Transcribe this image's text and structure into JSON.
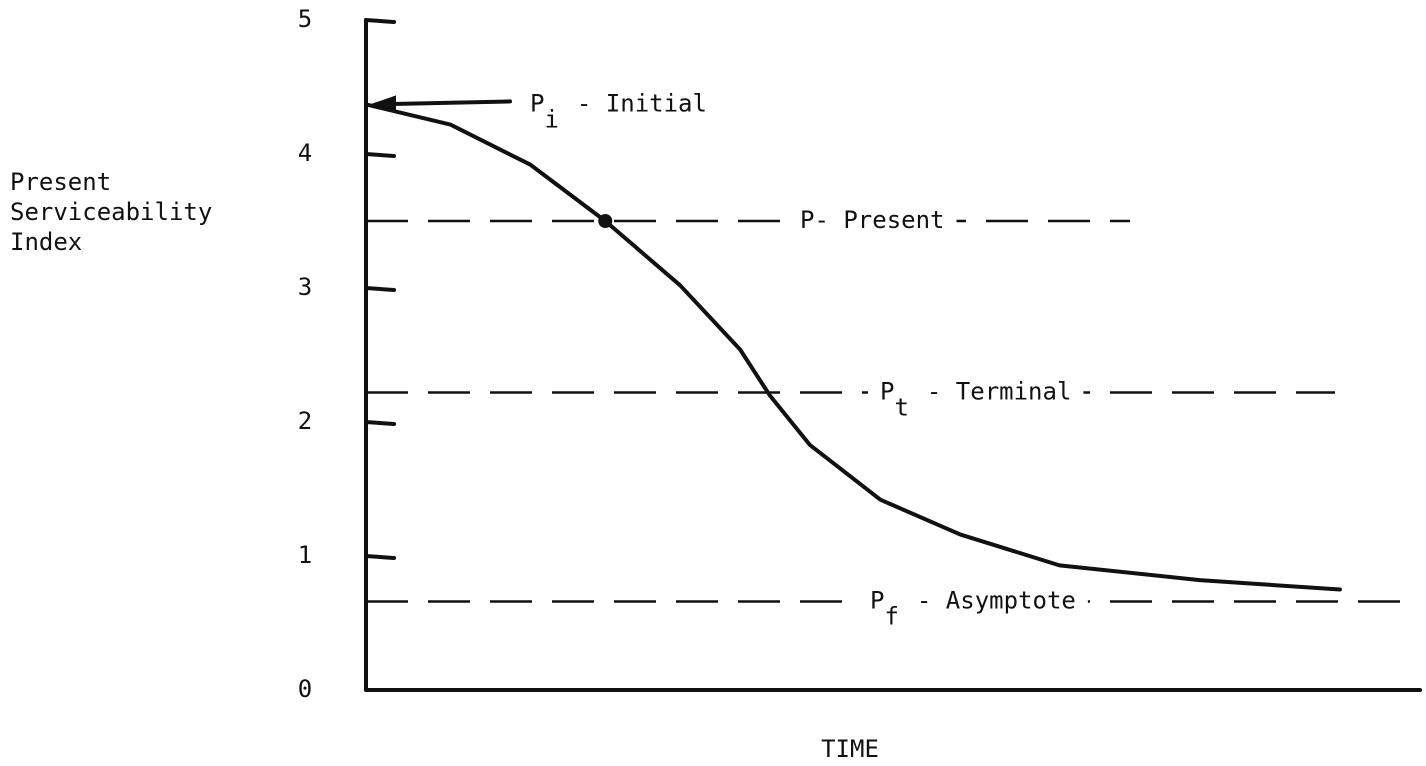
{
  "chart_data": {
    "type": "line",
    "xlabel": "TIME",
    "ylabel": "Present Serviceability Index",
    "xlim": [
      0,
      100
    ],
    "ylim": [
      0,
      5
    ],
    "yticks": [
      0,
      1,
      2,
      3,
      4,
      5
    ],
    "series": [
      {
        "color": "#111111",
        "x": [
          0,
          8,
          15.6,
          22.7,
          29.8,
          35.5,
          38.3,
          42.1,
          48.8,
          56.4,
          65.8,
          79.1,
          92.4
        ],
        "values": [
          4.37,
          4.22,
          3.92,
          3.5,
          3.02,
          2.54,
          2.2,
          1.83,
          1.42,
          1.16,
          0.93,
          0.82,
          0.75
        ]
      }
    ],
    "annotations": [
      {
        "label": "P",
        "subscript": "i",
        "text": "- Initial",
        "value": 4.37
      },
      {
        "label": "P- Present",
        "value": 3.5
      },
      {
        "label": "P",
        "subscript": "t",
        "text": "- Terminal",
        "value": 2.22
      },
      {
        "label": "P",
        "subscript": "f",
        "text": "- Asymptote",
        "value": 0.66
      }
    ]
  }
}
